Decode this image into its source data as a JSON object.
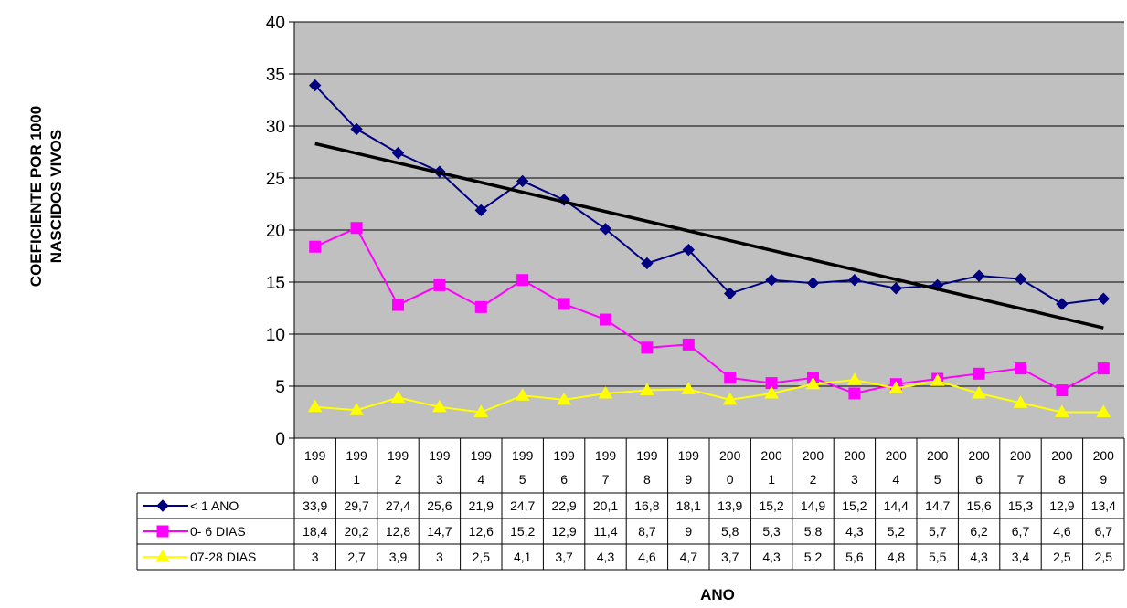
{
  "chart_data": {
    "type": "line",
    "xlabel": "ANO",
    "ylabel_line1": "COEFICIENTE  POR 1000",
    "ylabel_line2": "NASCIDOS VIVOS",
    "ylim": [
      0,
      40
    ],
    "yticks": [
      "0",
      "5",
      "10",
      "15",
      "20",
      "25",
      "30",
      "35",
      "40"
    ],
    "categories": [
      "1990",
      "1991",
      "1992",
      "1993",
      "1994",
      "1995",
      "1996",
      "1997",
      "1998",
      "1999",
      "2000",
      "2001",
      "2002",
      "2003",
      "2004",
      "2005",
      "2006",
      "2007",
      "2008",
      "2009"
    ],
    "category_top": [
      "199",
      "199",
      "199",
      "199",
      "199",
      "199",
      "199",
      "199",
      "199",
      "199",
      "200",
      "200",
      "200",
      "200",
      "200",
      "200",
      "200",
      "200",
      "200",
      "200"
    ],
    "category_bottom": [
      "0",
      "1",
      "2",
      "3",
      "4",
      "5",
      "6",
      "7",
      "8",
      "9",
      "0",
      "1",
      "2",
      "3",
      "4",
      "5",
      "6",
      "7",
      "8",
      "9"
    ],
    "grid": true,
    "series": [
      {
        "name": "< 1 ANO",
        "color": "#000080",
        "marker": "diamond",
        "values": [
          33.9,
          29.7,
          27.4,
          25.6,
          21.9,
          24.7,
          22.9,
          20.1,
          16.8,
          18.1,
          13.9,
          15.2,
          14.9,
          15.2,
          14.4,
          14.7,
          15.6,
          15.3,
          12.9,
          13.4
        ],
        "labels": [
          "33,9",
          "29,7",
          "27,4",
          "25,6",
          "21,9",
          "24,7",
          "22,9",
          "20,1",
          "16,8",
          "18,1",
          "13,9",
          "15,2",
          "14,9",
          "15,2",
          "14,4",
          "14,7",
          "15,6",
          "15,3",
          "12,9",
          "13,4"
        ]
      },
      {
        "name": "0- 6 DIAS",
        "color": "#ff00ff",
        "marker": "square",
        "values": [
          18.4,
          20.2,
          12.8,
          14.7,
          12.6,
          15.2,
          12.9,
          11.4,
          8.7,
          9,
          5.8,
          5.3,
          5.8,
          4.3,
          5.2,
          5.7,
          6.2,
          6.7,
          4.6,
          6.7
        ],
        "labels": [
          "18,4",
          "20,2",
          "12,8",
          "14,7",
          "12,6",
          "15,2",
          "12,9",
          "11,4",
          "8,7",
          "9",
          "5,8",
          "5,3",
          "5,8",
          "4,3",
          "5,2",
          "5,7",
          "6,2",
          "6,7",
          "4,6",
          "6,7"
        ]
      },
      {
        "name": "07-28 DIAS",
        "color": "#ffff00",
        "marker": "triangle",
        "values": [
          3,
          2.7,
          3.9,
          3,
          2.5,
          4.1,
          3.7,
          4.3,
          4.6,
          4.7,
          3.7,
          4.3,
          5.2,
          5.6,
          4.8,
          5.5,
          4.3,
          3.4,
          2.5,
          2.5
        ],
        "labels": [
          "3",
          "2,7",
          "3,9",
          "3",
          "2,5",
          "4,1",
          "3,7",
          "4,3",
          "4,6",
          "4,7",
          "3,7",
          "4,3",
          "5,2",
          "5,6",
          "4,8",
          "5,5",
          "4,3",
          "3,4",
          "2,5",
          "2,5"
        ]
      }
    ],
    "trendline": {
      "series": "< 1 ANO",
      "color": "#000000",
      "start": 28.3,
      "end": 10.6
    },
    "colors": {
      "plot_background": "#c0c0c0",
      "axis": "#000000"
    }
  }
}
